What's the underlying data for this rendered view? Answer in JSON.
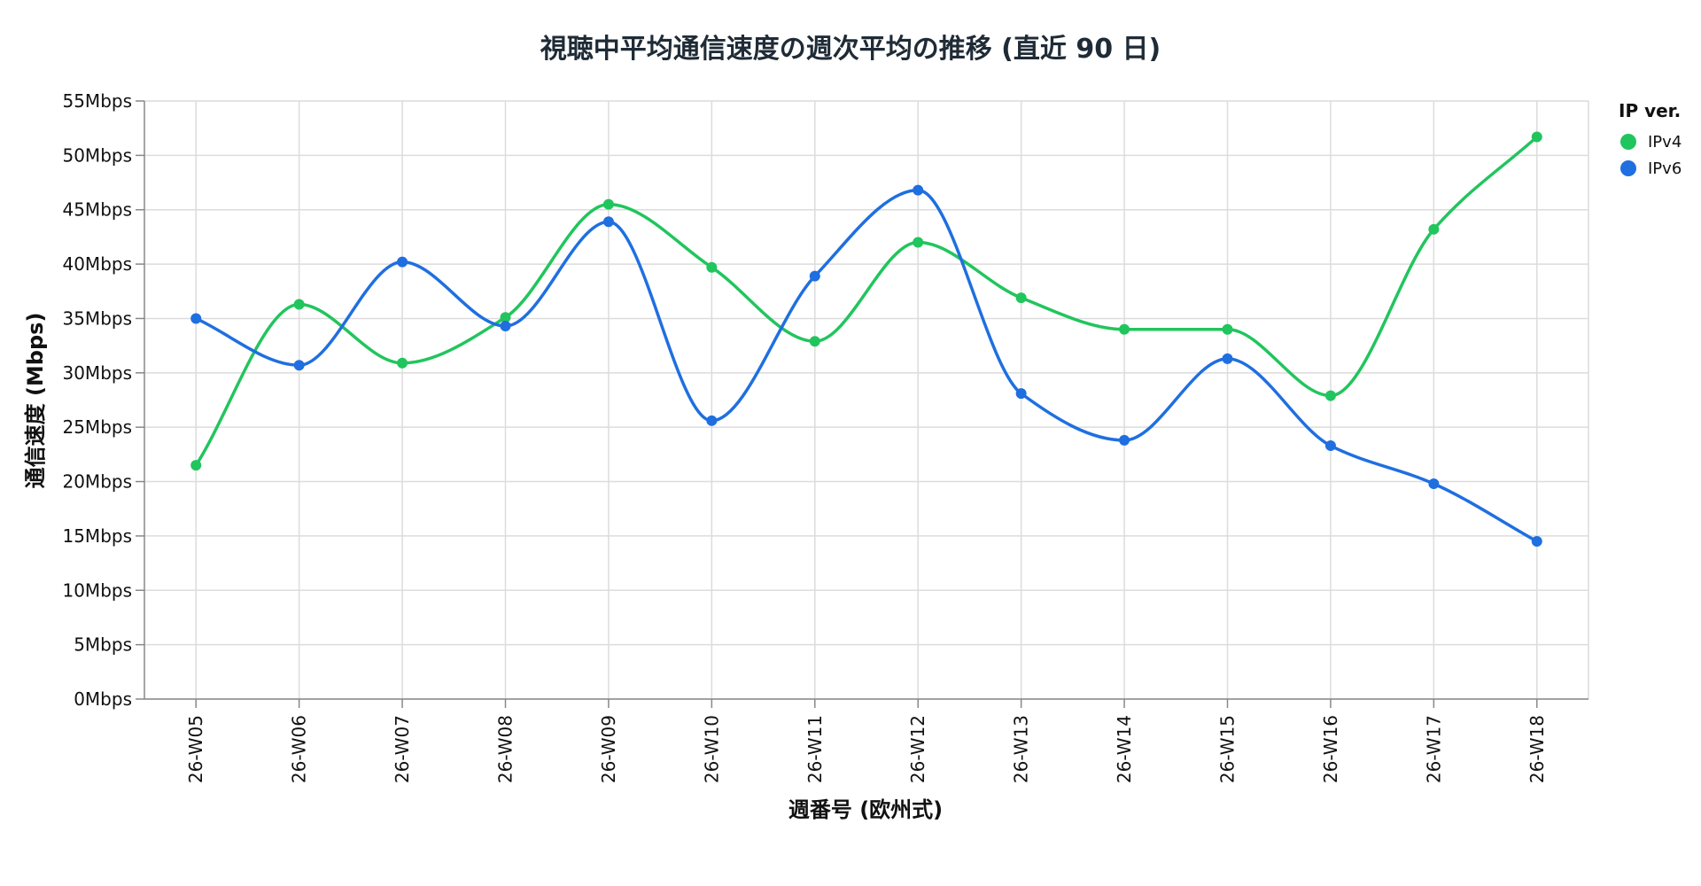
{
  "chart_data": {
    "type": "line",
    "title": "視聴中平均通信速度の週次平均の推移 (直近 90 日)",
    "xlabel": "週番号 (欧州式)",
    "ylabel": "通信速度 (Mbps)",
    "categories": [
      "26-W05",
      "26-W06",
      "26-W07",
      "26-W08",
      "26-W09",
      "26-W10",
      "26-W11",
      "26-W12",
      "26-W13",
      "26-W14",
      "26-W15",
      "26-W16",
      "26-W17",
      "26-W18"
    ],
    "ylim": [
      0,
      55
    ],
    "y_ticks": [
      0,
      5,
      10,
      15,
      20,
      25,
      30,
      35,
      40,
      45,
      50,
      55
    ],
    "y_tick_suffix": "Mbps",
    "grid": true,
    "interpolation": "smooth",
    "legend": {
      "title": "IP ver.",
      "position": "right"
    },
    "series": [
      {
        "name": "IPv4",
        "color": "#21c55d",
        "values": [
          21.5,
          36.3,
          30.9,
          35.1,
          45.5,
          39.7,
          32.9,
          42.0,
          36.9,
          34.0,
          34.0,
          27.9,
          43.2,
          51.7
        ]
      },
      {
        "name": "IPv6",
        "color": "#1f6fe0",
        "values": [
          35.0,
          30.7,
          40.2,
          34.3,
          43.9,
          25.6,
          38.9,
          46.8,
          28.1,
          23.8,
          31.3,
          23.3,
          19.8,
          14.5
        ]
      }
    ]
  }
}
